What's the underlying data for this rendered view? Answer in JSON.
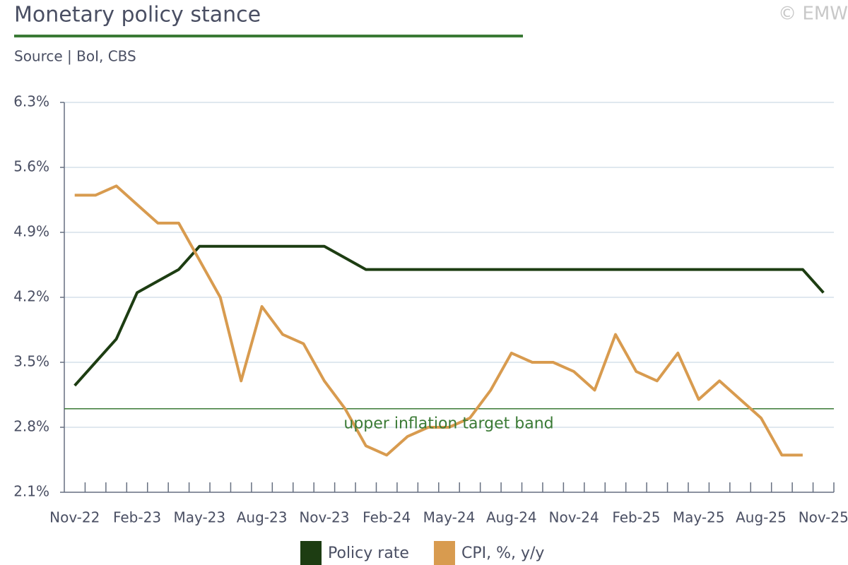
{
  "chart_data": {
    "type": "line",
    "title": "Monetary policy stance",
    "subtitle": "Source | BoI, CBS",
    "copyright": "© EMW",
    "categories": [
      "Nov-22",
      null,
      null,
      "Feb-23",
      null,
      null,
      "May-23",
      null,
      null,
      "Aug-23",
      null,
      null,
      "Nov-23",
      null,
      null,
      "Feb-24",
      null,
      null,
      "May-24",
      null,
      null,
      "Aug-24",
      null,
      null,
      "Nov-24",
      null,
      null,
      "Feb-25",
      null,
      null,
      "May-25",
      null,
      null,
      "Aug-25",
      null,
      null,
      "Nov-25"
    ],
    "series": [
      {
        "name": "Policy rate",
        "color": "#1d3d12",
        "values": [
          3.25,
          3.5,
          3.75,
          4.25,
          4.375,
          4.5,
          4.75,
          4.75,
          4.75,
          4.75,
          4.75,
          4.75,
          4.75,
          4.625,
          4.5,
          4.5,
          4.5,
          4.5,
          4.5,
          4.5,
          4.5,
          4.5,
          4.5,
          4.5,
          4.5,
          4.5,
          4.5,
          4.5,
          4.5,
          4.5,
          4.5,
          4.5,
          4.5,
          4.5,
          4.5,
          4.5,
          4.25
        ]
      },
      {
        "name": "CPI, %, y/y",
        "color": "#d89b4f",
        "values": [
          5.3,
          5.3,
          5.4,
          5.2,
          5.0,
          5.0,
          4.6,
          4.2,
          3.3,
          4.1,
          3.8,
          3.7,
          3.3,
          3.0,
          2.6,
          2.5,
          2.7,
          2.8,
          2.8,
          2.9,
          3.2,
          3.6,
          3.5,
          3.5,
          3.4,
          3.2,
          3.8,
          3.4,
          3.3,
          3.6,
          3.1,
          3.3,
          3.1,
          2.9,
          2.5,
          2.5,
          null
        ]
      }
    ],
    "ylim": [
      2.1,
      6.3
    ],
    "yticks": [
      {
        "value": 2.1,
        "label": "2.1%"
      },
      {
        "value": 2.8,
        "label": "2.8%"
      },
      {
        "value": 3.5,
        "label": "3.5%"
      },
      {
        "value": 4.2,
        "label": "4.2%"
      },
      {
        "value": 4.9,
        "label": "4.9%"
      },
      {
        "value": 5.6,
        "label": "5.6%"
      },
      {
        "value": 6.3,
        "label": "6.3%"
      }
    ],
    "grid": true,
    "reference_line": {
      "value": 3.0,
      "label": "upper inflation target band",
      "color": "#3a7a35"
    },
    "legend": "bottom"
  }
}
